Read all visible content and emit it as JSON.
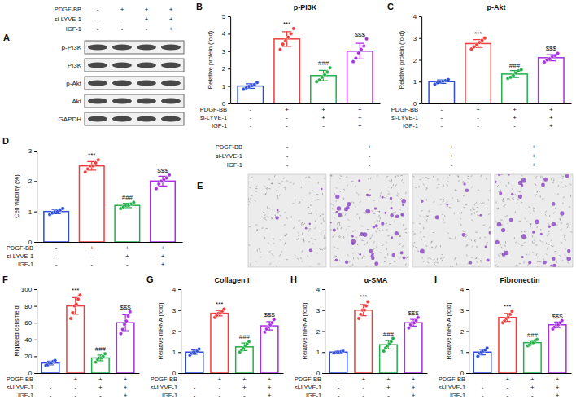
{
  "chart_data": [
    {
      "type": "bar",
      "letter": "B",
      "title": "p-PI3K",
      "y_label": "Relative protein (fold)",
      "ylim": [
        0,
        5
      ],
      "yticks": [
        0,
        1,
        2,
        3,
        4,
        5
      ],
      "values": [
        1.0,
        3.7,
        1.6,
        3.0
      ],
      "errors": [
        0.13,
        0.42,
        0.3,
        0.45
      ],
      "points": [
        [
          0.82,
          0.9,
          0.98,
          1.02,
          1.08,
          1.2
        ],
        [
          3.1,
          3.4,
          3.6,
          3.8,
          4.0,
          4.3
        ],
        [
          1.25,
          1.35,
          1.5,
          1.65,
          1.8,
          2.05
        ],
        [
          2.4,
          2.6,
          2.9,
          3.1,
          3.3,
          3.7
        ]
      ],
      "colors": [
        "#2f4ddb",
        "#f03c3c",
        "#22b04a",
        "#a62fe0"
      ],
      "conditions": [
        {
          "label": "PDGF-BB",
          "signs": [
            "-",
            "+",
            "+",
            "+"
          ]
        },
        {
          "label": "si-LYVE-1",
          "signs": [
            "-",
            "-",
            "+",
            "+"
          ]
        },
        {
          "label": "IGF-1",
          "signs": [
            "-",
            "-",
            "-",
            "+"
          ]
        }
      ],
      "annotations": [
        {
          "category": 1,
          "text": "***"
        },
        {
          "category": 2,
          "text": "###"
        },
        {
          "category": 3,
          "text": "$$$"
        }
      ]
    },
    {
      "type": "bar",
      "letter": "C",
      "title": "p-Akt",
      "y_label": "Relative protein (fold)",
      "ylim": [
        0,
        4
      ],
      "yticks": [
        0,
        1,
        2,
        3,
        4
      ],
      "values": [
        1.0,
        2.75,
        1.35,
        2.1
      ],
      "errors": [
        0.08,
        0.18,
        0.16,
        0.14
      ],
      "points": [
        [
          0.88,
          0.95,
          1.0,
          1.02,
          1.05,
          1.1
        ],
        [
          2.5,
          2.6,
          2.7,
          2.8,
          2.9,
          3.0
        ],
        [
          1.15,
          1.2,
          1.3,
          1.4,
          1.5,
          1.55
        ],
        [
          1.9,
          2.0,
          2.05,
          2.15,
          2.2,
          2.3
        ]
      ],
      "colors": [
        "#2f4ddb",
        "#f03c3c",
        "#22b04a",
        "#a62fe0"
      ],
      "conditions": [
        {
          "label": "PDGF-BB",
          "signs": [
            "-",
            "+",
            "+",
            "+"
          ]
        },
        {
          "label": "si-LYVE-1",
          "signs": [
            "-",
            "-",
            "+",
            "+"
          ]
        },
        {
          "label": "IGF-1",
          "signs": [
            "-",
            "-",
            "-",
            "+"
          ]
        }
      ],
      "annotations": [
        {
          "category": 1,
          "text": "***"
        },
        {
          "category": 2,
          "text": "###"
        },
        {
          "category": 3,
          "text": "$$$"
        }
      ]
    },
    {
      "type": "bar",
      "letter": "D",
      "y_label": "Cell viability (%)",
      "ylim": [
        0,
        3
      ],
      "yticks": [
        0,
        1,
        2,
        3
      ],
      "values": [
        1.0,
        2.5,
        1.2,
        2.0
      ],
      "errors": [
        0.07,
        0.14,
        0.07,
        0.16
      ],
      "points": [
        [
          0.9,
          0.95,
          1.0,
          1.0,
          1.05,
          1.1
        ],
        [
          2.3,
          2.4,
          2.5,
          2.5,
          2.6,
          2.7
        ],
        [
          1.1,
          1.15,
          1.2,
          1.2,
          1.25,
          1.3
        ],
        [
          1.75,
          1.9,
          2.0,
          2.05,
          2.1,
          2.2
        ]
      ],
      "colors": [
        "#2f4ddb",
        "#f03c3c",
        "#22b04a",
        "#a62fe0"
      ],
      "conditions": [
        {
          "label": "PDGF-BB",
          "signs": [
            "-",
            "+",
            "+",
            "+"
          ]
        },
        {
          "label": "si-LYVE-1",
          "signs": [
            "-",
            "-",
            "+",
            "+"
          ]
        },
        {
          "label": "IGF-1",
          "signs": [
            "-",
            "-",
            "-",
            "+"
          ]
        }
      ],
      "annotations": [
        {
          "category": 1,
          "text": "***"
        },
        {
          "category": 2,
          "text": "###"
        },
        {
          "category": 3,
          "text": "$$$"
        }
      ]
    },
    {
      "type": "bar",
      "letter": "F",
      "y_label": "Migrated cells/field",
      "ylim": [
        0,
        100
      ],
      "yticks": [
        0,
        20,
        40,
        60,
        80,
        100
      ],
      "values": [
        12,
        80,
        18,
        60
      ],
      "errors": [
        2.2,
        10,
        3.4,
        9.5
      ],
      "points": [
        [
          9,
          10,
          12,
          12,
          14,
          15
        ],
        [
          65,
          72,
          80,
          82,
          88,
          93
        ],
        [
          13,
          16,
          18,
          18,
          20,
          23
        ],
        [
          47,
          52,
          58,
          62,
          68,
          73
        ]
      ],
      "colors": [
        "#2f4ddb",
        "#f03c3c",
        "#22b04a",
        "#a62fe0"
      ],
      "conditions": [
        {
          "label": "PDGF-BB",
          "signs": [
            "-",
            "+",
            "+",
            "+"
          ]
        },
        {
          "label": "si-LYVE-1",
          "signs": [
            "-",
            "-",
            "+",
            "+"
          ]
        },
        {
          "label": "IGF-1",
          "signs": [
            "-",
            "-",
            "-",
            "+"
          ]
        }
      ],
      "annotations": [
        {
          "category": 1,
          "text": "***"
        },
        {
          "category": 2,
          "text": "###"
        },
        {
          "category": 3,
          "text": "$$$"
        }
      ]
    },
    {
      "type": "bar",
      "letter": "G",
      "title": "Collagen I",
      "y_label": "Relative mRNA (fold)",
      "ylim": [
        0,
        4
      ],
      "yticks": [
        0,
        1,
        2,
        3,
        4
      ],
      "values": [
        1.0,
        2.85,
        1.25,
        2.25
      ],
      "errors": [
        0.1,
        0.13,
        0.18,
        0.2
      ],
      "points": [
        [
          0.85,
          0.95,
          1.0,
          1.0,
          1.05,
          1.15
        ],
        [
          2.65,
          2.75,
          2.85,
          2.85,
          2.95,
          3.05
        ],
        [
          1.0,
          1.1,
          1.2,
          1.3,
          1.4,
          1.5
        ],
        [
          1.95,
          2.1,
          2.2,
          2.3,
          2.4,
          2.55
        ]
      ],
      "colors": [
        "#2f4ddb",
        "#f03c3c",
        "#22b04a",
        "#a62fe0"
      ],
      "conditions": [
        {
          "label": "PDGF-BB",
          "signs": [
            "-",
            "+",
            "+",
            "+"
          ]
        },
        {
          "label": "si-LYVE-1",
          "signs": [
            "-",
            "-",
            "+",
            "+"
          ]
        },
        {
          "label": "IGF-1",
          "signs": [
            "-",
            "-",
            "-",
            "+"
          ]
        }
      ],
      "annotations": [
        {
          "category": 1,
          "text": "***"
        },
        {
          "category": 2,
          "text": "###"
        },
        {
          "category": 3,
          "text": "$$$"
        }
      ]
    },
    {
      "type": "bar",
      "letter": "H",
      "title": "α-SMA",
      "y_label": "Relative mRNA (fold)",
      "ylim": [
        0,
        4
      ],
      "yticks": [
        0,
        1,
        2,
        3,
        4
      ],
      "values": [
        1.0,
        3.0,
        1.35,
        2.4
      ],
      "errors": [
        0.04,
        0.27,
        0.2,
        0.16
      ],
      "points": [
        [
          0.95,
          0.98,
          1.0,
          1.0,
          1.02,
          1.05
        ],
        [
          2.6,
          2.8,
          3.0,
          3.0,
          3.2,
          3.4
        ],
        [
          1.05,
          1.2,
          1.3,
          1.4,
          1.5,
          1.65
        ],
        [
          2.15,
          2.3,
          2.4,
          2.4,
          2.5,
          2.65
        ]
      ],
      "colors": [
        "#2f4ddb",
        "#f03c3c",
        "#22b04a",
        "#a62fe0"
      ],
      "conditions": [
        {
          "label": "PDGF-BB",
          "signs": [
            "-",
            "+",
            "+",
            "+"
          ]
        },
        {
          "label": "si-LYVE-1",
          "signs": [
            "-",
            "-",
            "+",
            "+"
          ]
        },
        {
          "label": "IGF-1",
          "signs": [
            "-",
            "-",
            "-",
            "+"
          ]
        }
      ],
      "annotations": [
        {
          "category": 1,
          "text": "***"
        },
        {
          "category": 2,
          "text": "###"
        },
        {
          "category": 3,
          "text": "$$$"
        }
      ]
    },
    {
      "type": "bar",
      "letter": "I",
      "title": "Fibronectin",
      "y_label": "Relative mRNA (fold)",
      "ylim": [
        0,
        4
      ],
      "yticks": [
        0,
        1,
        2,
        3,
        4
      ],
      "values": [
        1.0,
        2.65,
        1.45,
        2.3
      ],
      "errors": [
        0.13,
        0.19,
        0.11,
        0.13
      ],
      "points": [
        [
          0.8,
          0.95,
          1.0,
          1.05,
          1.1,
          1.2
        ],
        [
          2.4,
          2.5,
          2.6,
          2.65,
          2.8,
          2.95
        ],
        [
          1.3,
          1.35,
          1.45,
          1.45,
          1.55,
          1.6
        ],
        [
          2.1,
          2.2,
          2.3,
          2.3,
          2.4,
          2.5
        ]
      ],
      "colors": [
        "#2f4ddb",
        "#f03c3c",
        "#22b04a",
        "#a62fe0"
      ],
      "conditions": [
        {
          "label": "PDGF-BB",
          "signs": [
            "-",
            "+",
            "+",
            "+"
          ]
        },
        {
          "label": "si-LYVE-1",
          "signs": [
            "-",
            "-",
            "+",
            "+"
          ]
        },
        {
          "label": "IGF-1",
          "signs": [
            "-",
            "-",
            "-",
            "+"
          ]
        }
      ],
      "annotations": [
        {
          "category": 1,
          "text": "***"
        },
        {
          "category": 2,
          "text": "###"
        },
        {
          "category": 3,
          "text": "$$$"
        }
      ]
    }
  ],
  "blot": {
    "letter": "A",
    "conditions": [
      {
        "label": "PDGF-BB",
        "signs": [
          "-",
          "+",
          "+",
          "+"
        ]
      },
      {
        "label": "si-LYVE-1",
        "signs": [
          "-",
          "-",
          "+",
          "+"
        ]
      },
      {
        "label": "IGF-1",
        "signs": [
          "-",
          "-",
          "-",
          "+"
        ]
      }
    ],
    "rows": [
      "p-PI3K",
      "PI3K",
      "p-Akt",
      "Akt",
      "GAPDH"
    ]
  },
  "migration": {
    "letter": "E",
    "conditions": [
      {
        "label": "PDGF-BB",
        "signs": [
          "-",
          "+",
          "+",
          "+"
        ]
      },
      {
        "label": "si-LYVE-1",
        "signs": [
          "-",
          "-",
          "+",
          "+"
        ]
      },
      {
        "label": "IGF-1",
        "signs": [
          "-",
          "-",
          "-",
          "+"
        ]
      }
    ]
  }
}
